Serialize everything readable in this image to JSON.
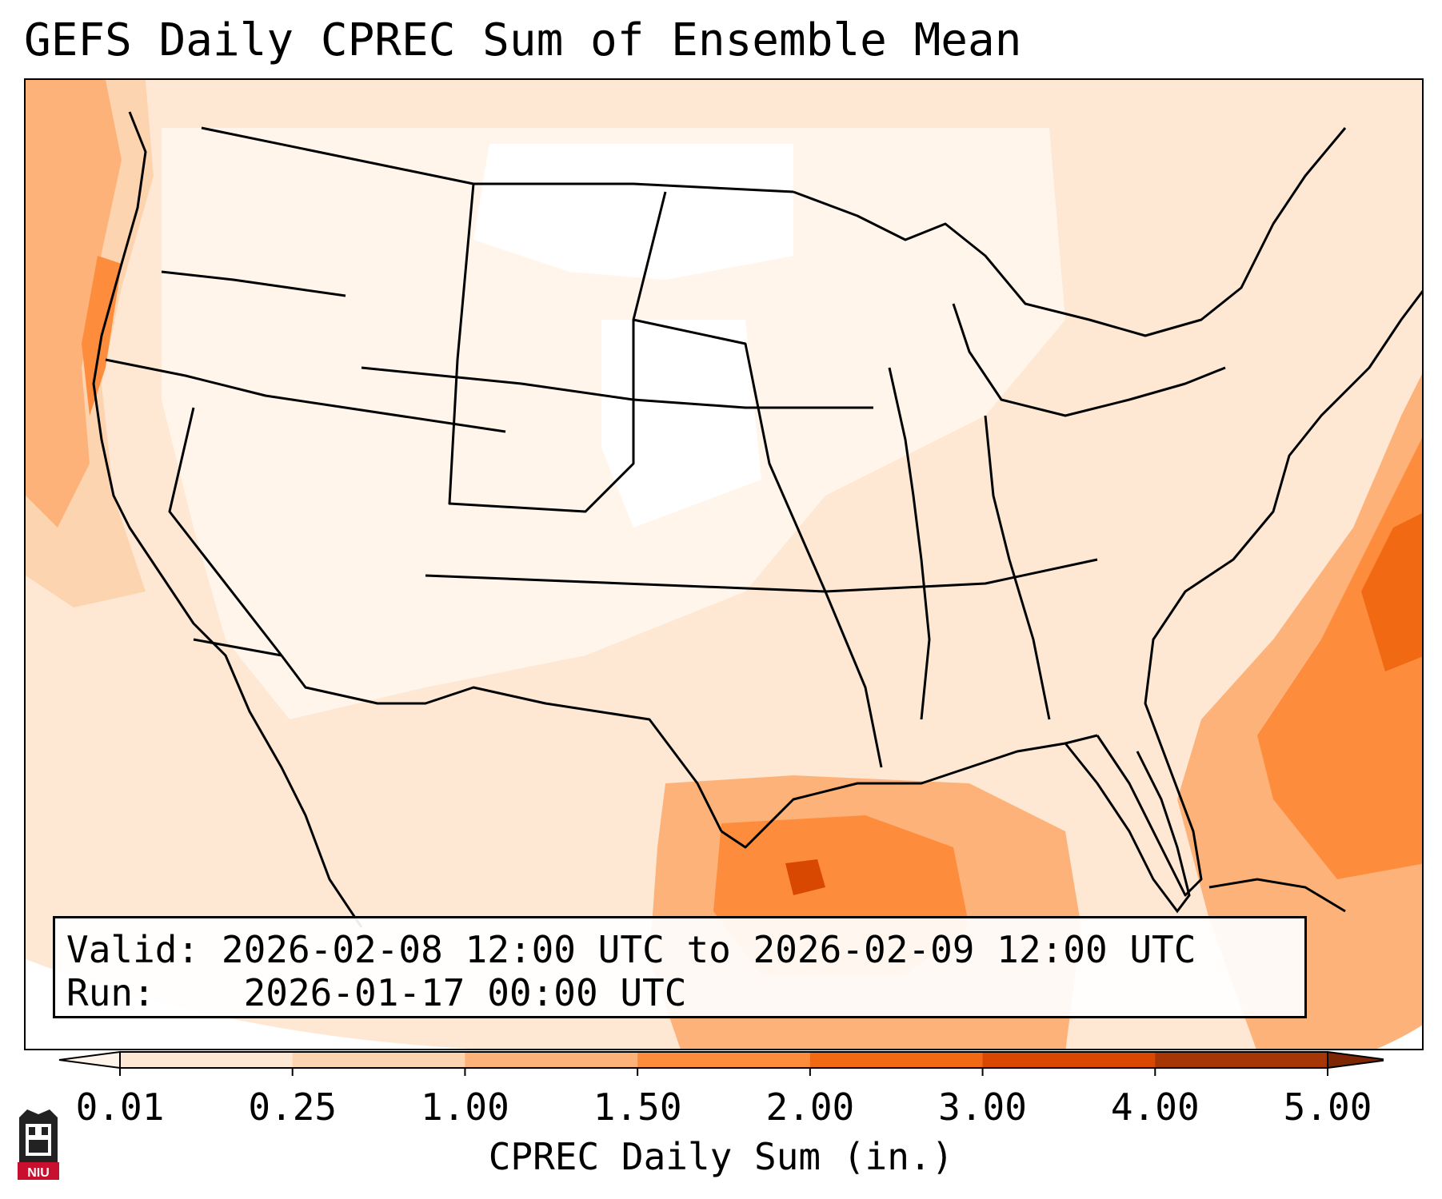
{
  "title": "GEFS Daily CPREC Sum of Ensemble Mean",
  "info": {
    "valid_label": "Valid:",
    "valid_value": "2026-02-08 12:00 UTC to 2026-02-09 12:00 UTC",
    "run_label": "Run:",
    "run_value": "2026-01-17 00:00 UTC"
  },
  "colorbar": {
    "label": "CPREC Daily Sum (in.)",
    "ticks": [
      "0.01",
      "0.25",
      "1.00",
      "1.50",
      "2.00",
      "3.00",
      "4.00",
      "5.00"
    ],
    "colors": [
      "#fee8d3",
      "#fdd4b0",
      "#fdb27a",
      "#fd8d3c",
      "#f16913",
      "#d94801",
      "#a63603"
    ],
    "under_color": "#fff5eb",
    "over_color": "#7f2704"
  },
  "logo": {
    "text": "NIU",
    "color": "#c8102e"
  }
}
